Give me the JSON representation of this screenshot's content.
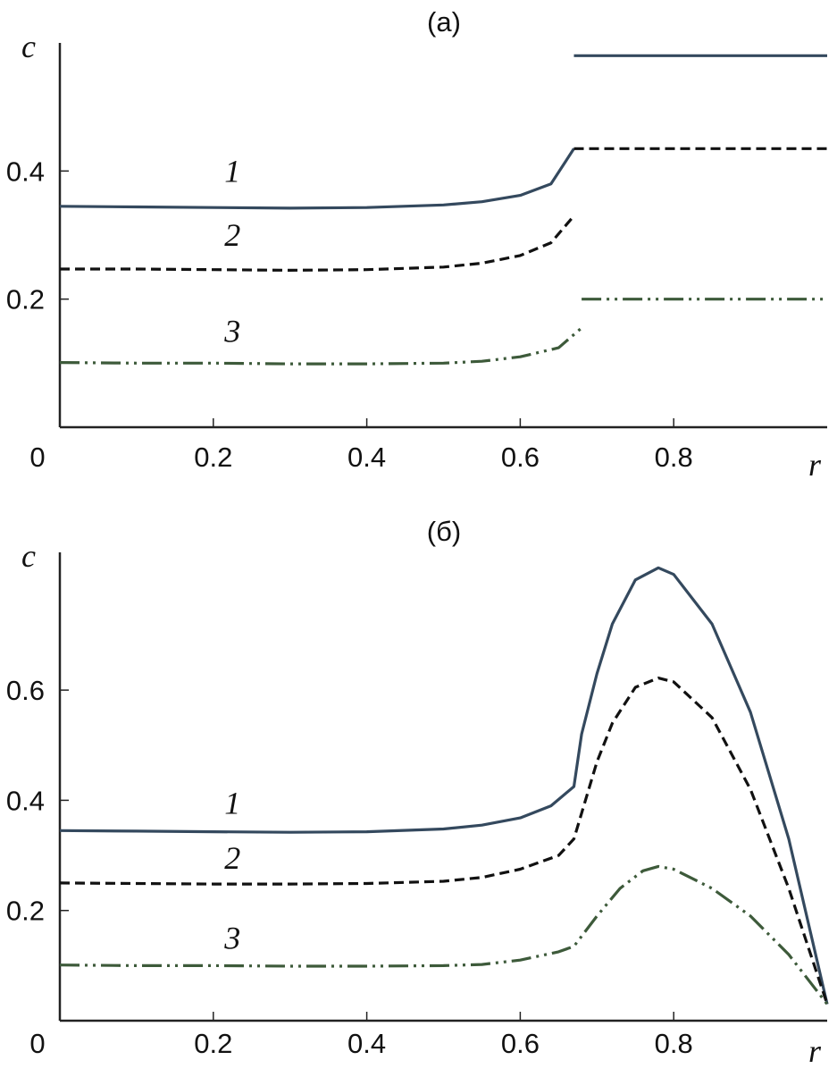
{
  "chart_data": [
    {
      "type": "line",
      "panel": "(a)",
      "title": "(a)",
      "xlabel": "r",
      "ylabel": "c",
      "xlim": [
        0,
        1.0
      ],
      "ylim": [
        0,
        0.6
      ],
      "x_ticks": [
        "0",
        "0.2",
        "0.4",
        "0.6",
        "0.8"
      ],
      "x_tick_values": [
        0,
        0.2,
        0.4,
        0.6,
        0.8
      ],
      "y_ticks": [
        "0.2",
        "0.4"
      ],
      "y_tick_values": [
        0.2,
        0.4
      ],
      "grid": false,
      "series": [
        {
          "name": "1",
          "color": "#34495e",
          "dash": "solid",
          "segments": [
            [
              [
                0,
                0.345
              ],
              [
                0.1,
                0.344
              ],
              [
                0.2,
                0.343
              ],
              [
                0.3,
                0.342
              ],
              [
                0.4,
                0.343
              ],
              [
                0.5,
                0.347
              ],
              [
                0.55,
                0.352
              ],
              [
                0.6,
                0.362
              ],
              [
                0.64,
                0.38
              ],
              [
                0.67,
                0.435
              ]
            ],
            [
              [
                0.67,
                0.58
              ],
              [
                1.0,
                0.58
              ]
            ]
          ]
        },
        {
          "name": "2",
          "color": "#111111",
          "dash": "dashed",
          "segments": [
            [
              [
                0,
                0.247
              ],
              [
                0.1,
                0.247
              ],
              [
                0.2,
                0.246
              ],
              [
                0.3,
                0.245
              ],
              [
                0.4,
                0.246
              ],
              [
                0.5,
                0.25
              ],
              [
                0.55,
                0.256
              ],
              [
                0.6,
                0.268
              ],
              [
                0.64,
                0.288
              ],
              [
                0.67,
                0.33
              ]
            ],
            [
              [
                0.67,
                0.435
              ],
              [
                1.0,
                0.435
              ]
            ]
          ]
        },
        {
          "name": "3",
          "color": "#3d5a3a",
          "dash": "dash-dot-dot",
          "segments": [
            [
              [
                0,
                0.101
              ],
              [
                0.1,
                0.1
              ],
              [
                0.2,
                0.1
              ],
              [
                0.3,
                0.099
              ],
              [
                0.4,
                0.099
              ],
              [
                0.5,
                0.1
              ],
              [
                0.55,
                0.103
              ],
              [
                0.6,
                0.11
              ],
              [
                0.65,
                0.124
              ],
              [
                0.68,
                0.155
              ]
            ],
            [
              [
                0.68,
                0.2
              ],
              [
                1.0,
                0.2
              ]
            ]
          ]
        }
      ],
      "annotations": [
        {
          "text": "1",
          "x": 0.225,
          "y": 0.4
        },
        {
          "text": "2",
          "x": 0.225,
          "y": 0.3
        },
        {
          "text": "3",
          "x": 0.225,
          "y": 0.15
        }
      ]
    },
    {
      "type": "line",
      "panel": "(б)",
      "title": "(б)",
      "xlabel": "r",
      "ylabel": "c",
      "xlim": [
        0,
        1.0
      ],
      "ylim": [
        0,
        0.85
      ],
      "x_ticks": [
        "0",
        "0.2",
        "0.4",
        "0.6",
        "0.8"
      ],
      "x_tick_values": [
        0,
        0.2,
        0.4,
        0.6,
        0.8
      ],
      "y_ticks": [
        "0.2",
        "0.4",
        "0.6"
      ],
      "y_tick_values": [
        0.2,
        0.4,
        0.6
      ],
      "grid": false,
      "series": [
        {
          "name": "1",
          "color": "#34495e",
          "dash": "solid",
          "segments": [
            [
              [
                0,
                0.345
              ],
              [
                0.1,
                0.344
              ],
              [
                0.2,
                0.343
              ],
              [
                0.3,
                0.342
              ],
              [
                0.4,
                0.343
              ],
              [
                0.5,
                0.348
              ],
              [
                0.55,
                0.355
              ],
              [
                0.6,
                0.368
              ],
              [
                0.64,
                0.39
              ],
              [
                0.67,
                0.425
              ],
              [
                0.68,
                0.52
              ],
              [
                0.7,
                0.63
              ],
              [
                0.72,
                0.72
              ],
              [
                0.75,
                0.8
              ],
              [
                0.78,
                0.822
              ],
              [
                0.8,
                0.81
              ],
              [
                0.85,
                0.72
              ],
              [
                0.9,
                0.56
              ],
              [
                0.95,
                0.33
              ],
              [
                1.0,
                0.03
              ]
            ]
          ]
        },
        {
          "name": "2",
          "color": "#111111",
          "dash": "dashed",
          "segments": [
            [
              [
                0,
                0.25
              ],
              [
                0.1,
                0.249
              ],
              [
                0.2,
                0.248
              ],
              [
                0.3,
                0.248
              ],
              [
                0.4,
                0.249
              ],
              [
                0.5,
                0.253
              ],
              [
                0.55,
                0.26
              ],
              [
                0.6,
                0.275
              ],
              [
                0.65,
                0.3
              ],
              [
                0.67,
                0.33
              ],
              [
                0.7,
                0.47
              ],
              [
                0.72,
                0.54
              ],
              [
                0.75,
                0.605
              ],
              [
                0.78,
                0.622
              ],
              [
                0.8,
                0.615
              ],
              [
                0.85,
                0.55
              ],
              [
                0.9,
                0.42
              ],
              [
                0.95,
                0.24
              ],
              [
                1.0,
                0.03
              ]
            ]
          ]
        },
        {
          "name": "3",
          "color": "#3d5a3a",
          "dash": "dash-dot-dot",
          "segments": [
            [
              [
                0,
                0.101
              ],
              [
                0.1,
                0.1
              ],
              [
                0.2,
                0.1
              ],
              [
                0.3,
                0.099
              ],
              [
                0.4,
                0.099
              ],
              [
                0.5,
                0.1
              ],
              [
                0.55,
                0.102
              ],
              [
                0.6,
                0.11
              ],
              [
                0.65,
                0.125
              ],
              [
                0.67,
                0.135
              ],
              [
                0.7,
                0.19
              ],
              [
                0.73,
                0.24
              ],
              [
                0.76,
                0.272
              ],
              [
                0.78,
                0.28
              ],
              [
                0.8,
                0.275
              ],
              [
                0.85,
                0.24
              ],
              [
                0.9,
                0.19
              ],
              [
                0.95,
                0.12
              ],
              [
                1.0,
                0.03
              ]
            ]
          ]
        }
      ],
      "annotations": [
        {
          "text": "1",
          "x": 0.225,
          "y": 0.395
        },
        {
          "text": "2",
          "x": 0.225,
          "y": 0.295
        },
        {
          "text": "3",
          "x": 0.225,
          "y": 0.15
        }
      ]
    }
  ]
}
